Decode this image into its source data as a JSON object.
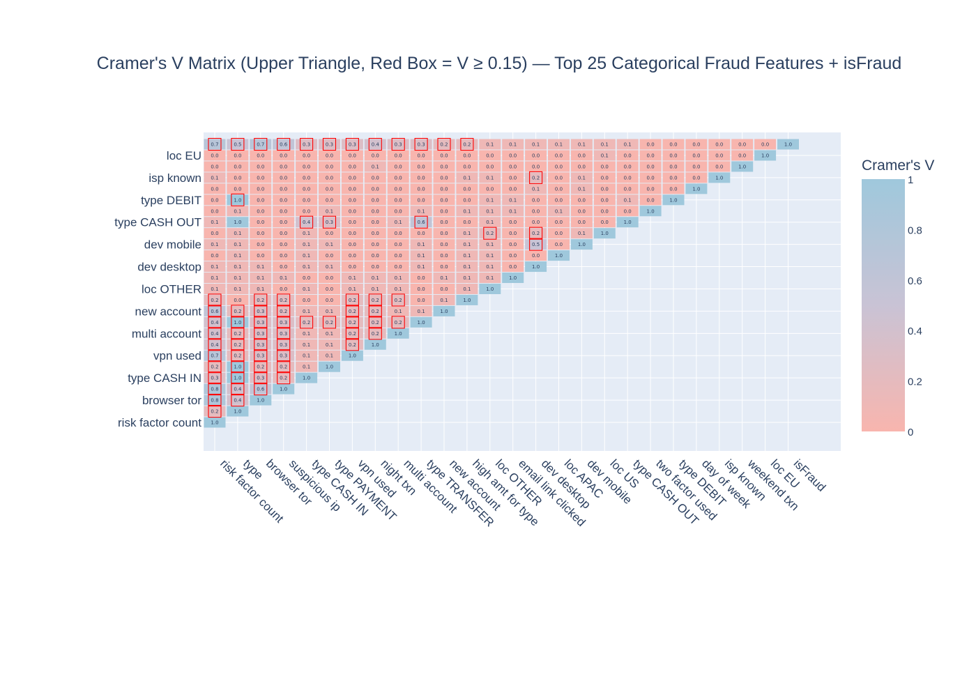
{
  "chart_data": {
    "type": "heatmap",
    "title": "Cramer's V Matrix (Upper Triangle, Red Box = V ≥ 0.15) — Top 25 Categorical Fraud Features + isFraud",
    "features": [
      "risk factor count",
      "type",
      "browser tor",
      "suspicious ip",
      "type CASH IN",
      "type PAYMENT",
      "vpn used",
      "night txn",
      "multi account",
      "type TRANSFER",
      "new account",
      "high amt for type",
      "loc OTHER",
      "email link clicked",
      "dev desktop",
      "loc APAC",
      "dev mobile",
      "loc US",
      "type CASH OUT",
      "two factor used",
      "type DEBIT",
      "day of week",
      "isp known",
      "weekend txn",
      "loc EU",
      "isFraud"
    ],
    "y_tick_labels": [
      "risk factor count",
      "browser tor",
      "type CASH IN",
      "vpn used",
      "multi account",
      "new account",
      "loc OTHER",
      "dev desktop",
      "dev mobile",
      "type CASH OUT",
      "type DEBIT",
      "isp known",
      "loc EU"
    ],
    "matrix": [
      [
        "1.0",
        "0.2",
        "0.8",
        "0.8",
        "0.3",
        "0.2",
        "0.7",
        "0.4",
        "0.4",
        "0.4",
        "0.6",
        "0.2",
        "0.1",
        "0.1",
        "0.1",
        "0.0",
        "0.1",
        "0.0",
        "0.1",
        "0.0",
        "0.0",
        "0.0",
        "0.1",
        "0.0",
        "0.0",
        "0.7"
      ],
      [
        null,
        "1.0",
        "0.4",
        "0.4",
        "1.0",
        "1.0",
        "0.2",
        "0.2",
        "0.2",
        "1.0",
        "0.2",
        "0.0",
        "0.1",
        "0.1",
        "0.1",
        "0.1",
        "0.1",
        "0.1",
        "1.0",
        "0.1",
        "1.0",
        "0.0",
        "0.0",
        "0.0",
        "0.0",
        "0.5"
      ],
      [
        null,
        null,
        "1.0",
        "0.6",
        "0.3",
        "0.2",
        "0.3",
        "0.3",
        "0.3",
        "0.3",
        "0.3",
        "0.2",
        "0.1",
        "0.1",
        "0.1",
        "0.0",
        "0.0",
        "0.0",
        "0.0",
        "0.0",
        "0.0",
        "0.0",
        "0.0",
        "0.0",
        "0.0",
        "0.7"
      ],
      [
        null,
        null,
        null,
        "1.0",
        "0.2",
        "0.2",
        "0.3",
        "0.3",
        "0.3",
        "0.3",
        "0.2",
        "0.2",
        "0.0",
        "0.1",
        "0.0",
        "0.0",
        "0.0",
        "0.0",
        "0.0",
        "0.0",
        "0.0",
        "0.0",
        "0.0",
        "0.0",
        "0.0",
        "0.6"
      ],
      [
        null,
        null,
        null,
        null,
        "1.0",
        "0.1",
        "0.1",
        "0.1",
        "0.1",
        "0.2",
        "0.1",
        "0.0",
        "0.1",
        "0.0",
        "0.1",
        "0.1",
        "0.1",
        "0.1",
        "0.4",
        "0.0",
        "0.0",
        "0.0",
        "0.0",
        "0.0",
        "0.0",
        "0.3"
      ],
      [
        null,
        null,
        null,
        null,
        null,
        "1.0",
        "0.1",
        "0.1",
        "0.1",
        "0.2",
        "0.1",
        "0.0",
        "0.0",
        "0.0",
        "0.1",
        "0.0",
        "0.1",
        "0.0",
        "0.3",
        "0.1",
        "0.0",
        "0.0",
        "0.0",
        "0.0",
        "0.0",
        "0.3"
      ],
      [
        null,
        null,
        null,
        null,
        null,
        null,
        "1.0",
        "0.2",
        "0.2",
        "0.2",
        "0.2",
        "0.2",
        "0.1",
        "0.1",
        "0.0",
        "0.0",
        "0.0",
        "0.0",
        "0.0",
        "0.0",
        "0.0",
        "0.0",
        "0.0",
        "0.0",
        "0.0",
        "0.3"
      ],
      [
        null,
        null,
        null,
        null,
        null,
        null,
        null,
        "1.0",
        "0.2",
        "0.2",
        "0.2",
        "0.2",
        "0.1",
        "0.1",
        "0.0",
        "0.0",
        "0.0",
        "0.0",
        "0.0",
        "0.0",
        "0.0",
        "0.0",
        "0.0",
        "0.1",
        "0.0",
        "0.4"
      ],
      [
        null,
        null,
        null,
        null,
        null,
        null,
        null,
        null,
        "1.0",
        "0.2",
        "0.1",
        "0.2",
        "0.1",
        "0.1",
        "0.0",
        "0.0",
        "0.0",
        "0.0",
        "0.1",
        "0.0",
        "0.0",
        "0.0",
        "0.0",
        "0.0",
        "0.0",
        "0.3"
      ],
      [
        null,
        null,
        null,
        null,
        null,
        null,
        null,
        null,
        null,
        "1.0",
        "0.1",
        "0.0",
        "0.0",
        "0.0",
        "0.1",
        "0.1",
        "0.1",
        "0.0",
        "0.6",
        "0.1",
        "0.0",
        "0.0",
        "0.0",
        "0.0",
        "0.0",
        "0.3"
      ],
      [
        null,
        null,
        null,
        null,
        null,
        null,
        null,
        null,
        null,
        null,
        "1.0",
        "0.1",
        "0.0",
        "0.1",
        "0.0",
        "0.0",
        "0.0",
        "0.0",
        "0.0",
        "0.0",
        "0.0",
        "0.0",
        "0.0",
        "0.0",
        "0.0",
        "0.2"
      ],
      [
        null,
        null,
        null,
        null,
        null,
        null,
        null,
        null,
        null,
        null,
        null,
        "1.0",
        "0.1",
        "0.1",
        "0.1",
        "0.1",
        "0.1",
        "0.1",
        "0.0",
        "0.1",
        "0.0",
        "0.0",
        "0.1",
        "0.0",
        "0.0",
        "0.2"
      ],
      [
        null,
        null,
        null,
        null,
        null,
        null,
        null,
        null,
        null,
        null,
        null,
        null,
        "1.0",
        "0.1",
        "0.1",
        "0.1",
        "0.1",
        "0.2",
        "0.1",
        "0.1",
        "0.1",
        "0.0",
        "0.1",
        "0.0",
        "0.0",
        "0.1"
      ],
      [
        null,
        null,
        null,
        null,
        null,
        null,
        null,
        null,
        null,
        null,
        null,
        null,
        null,
        "1.0",
        "0.0",
        "0.0",
        "0.0",
        "0.0",
        "0.0",
        "0.1",
        "0.1",
        "0.0",
        "0.0",
        "0.0",
        "0.0",
        "0.1"
      ],
      [
        null,
        null,
        null,
        null,
        null,
        null,
        null,
        null,
        null,
        null,
        null,
        null,
        null,
        null,
        "1.0",
        "0.0",
        "0.5",
        "0.2",
        "0.0",
        "0.0",
        "0.0",
        "0.1",
        "0.2",
        "0.0",
        "0.0",
        "0.1"
      ],
      [
        null,
        null,
        null,
        null,
        null,
        null,
        null,
        null,
        null,
        null,
        null,
        null,
        null,
        null,
        null,
        "1.0",
        "0.0",
        "0.0",
        "0.0",
        "0.1",
        "0.0",
        "0.0",
        "0.0",
        "0.0",
        "0.0",
        "0.1"
      ],
      [
        null,
        null,
        null,
        null,
        null,
        null,
        null,
        null,
        null,
        null,
        null,
        null,
        null,
        null,
        null,
        null,
        "1.0",
        "0.1",
        "0.0",
        "0.0",
        "0.0",
        "0.1",
        "0.1",
        "0.0",
        "0.0",
        "0.1"
      ],
      [
        null,
        null,
        null,
        null,
        null,
        null,
        null,
        null,
        null,
        null,
        null,
        null,
        null,
        null,
        null,
        null,
        null,
        "1.0",
        "0.0",
        "0.0",
        "0.0",
        "0.0",
        "0.0",
        "0.0",
        "0.1",
        "0.1"
      ],
      [
        null,
        null,
        null,
        null,
        null,
        null,
        null,
        null,
        null,
        null,
        null,
        null,
        null,
        null,
        null,
        null,
        null,
        null,
        "1.0",
        "0.0",
        "0.1",
        "0.0",
        "0.0",
        "0.0",
        "0.0",
        "0.1"
      ],
      [
        null,
        null,
        null,
        null,
        null,
        null,
        null,
        null,
        null,
        null,
        null,
        null,
        null,
        null,
        null,
        null,
        null,
        null,
        null,
        "1.0",
        "0.0",
        "0.0",
        "0.0",
        "0.0",
        "0.0",
        "0.0"
      ],
      [
        null,
        null,
        null,
        null,
        null,
        null,
        null,
        null,
        null,
        null,
        null,
        null,
        null,
        null,
        null,
        null,
        null,
        null,
        null,
        null,
        "1.0",
        "0.0",
        "0.0",
        "0.0",
        "0.0",
        "0.0"
      ],
      [
        null,
        null,
        null,
        null,
        null,
        null,
        null,
        null,
        null,
        null,
        null,
        null,
        null,
        null,
        null,
        null,
        null,
        null,
        null,
        null,
        null,
        "1.0",
        "0.0",
        "0.0",
        "0.0",
        "0.0"
      ],
      [
        null,
        null,
        null,
        null,
        null,
        null,
        null,
        null,
        null,
        null,
        null,
        null,
        null,
        null,
        null,
        null,
        null,
        null,
        null,
        null,
        null,
        null,
        "1.0",
        "0.0",
        "0.0",
        "0.0"
      ],
      [
        null,
        null,
        null,
        null,
        null,
        null,
        null,
        null,
        null,
        null,
        null,
        null,
        null,
        null,
        null,
        null,
        null,
        null,
        null,
        null,
        null,
        null,
        null,
        "1.0",
        "0.0",
        "0.0"
      ],
      [
        null,
        null,
        null,
        null,
        null,
        null,
        null,
        null,
        null,
        null,
        null,
        null,
        null,
        null,
        null,
        null,
        null,
        null,
        null,
        null,
        null,
        null,
        null,
        null,
        "1.0",
        "0.0"
      ],
      [
        null,
        null,
        null,
        null,
        null,
        null,
        null,
        null,
        null,
        null,
        null,
        null,
        null,
        null,
        null,
        null,
        null,
        null,
        null,
        null,
        null,
        null,
        null,
        null,
        null,
        "1.0"
      ]
    ],
    "red_boxes": [
      [
        0,
        1
      ],
      [
        0,
        2
      ],
      [
        0,
        3
      ],
      [
        0,
        4
      ],
      [
        0,
        5
      ],
      [
        0,
        6
      ],
      [
        0,
        7
      ],
      [
        0,
        8
      ],
      [
        0,
        9
      ],
      [
        0,
        10
      ],
      [
        0,
        11
      ],
      [
        0,
        25
      ],
      [
        1,
        2
      ],
      [
        1,
        3
      ],
      [
        1,
        4
      ],
      [
        1,
        5
      ],
      [
        1,
        6
      ],
      [
        1,
        7
      ],
      [
        1,
        8
      ],
      [
        1,
        9
      ],
      [
        1,
        10
      ],
      [
        1,
        20
      ],
      [
        1,
        25
      ],
      [
        2,
        3
      ],
      [
        2,
        4
      ],
      [
        2,
        5
      ],
      [
        2,
        6
      ],
      [
        2,
        7
      ],
      [
        2,
        8
      ],
      [
        2,
        9
      ],
      [
        2,
        10
      ],
      [
        2,
        11
      ],
      [
        2,
        25
      ],
      [
        3,
        4
      ],
      [
        3,
        5
      ],
      [
        3,
        6
      ],
      [
        3,
        7
      ],
      [
        3,
        8
      ],
      [
        3,
        9
      ],
      [
        3,
        10
      ],
      [
        3,
        11
      ],
      [
        3,
        25
      ],
      [
        4,
        9
      ],
      [
        4,
        18
      ],
      [
        4,
        25
      ],
      [
        5,
        9
      ],
      [
        5,
        18
      ],
      [
        5,
        25
      ],
      [
        6,
        7
      ],
      [
        6,
        8
      ],
      [
        6,
        9
      ],
      [
        6,
        10
      ],
      [
        6,
        11
      ],
      [
        6,
        25
      ],
      [
        7,
        8
      ],
      [
        7,
        9
      ],
      [
        7,
        10
      ],
      [
        7,
        11
      ],
      [
        7,
        25
      ],
      [
        8,
        9
      ],
      [
        8,
        11
      ],
      [
        8,
        25
      ],
      [
        9,
        18
      ],
      [
        9,
        25
      ],
      [
        10,
        25
      ],
      [
        11,
        25
      ],
      [
        12,
        17
      ],
      [
        14,
        16
      ],
      [
        14,
        17
      ],
      [
        14,
        22
      ]
    ],
    "colorscale": {
      "low": "#f8b5ae",
      "mid": "#c9c3d5",
      "high": "#9fc8dc"
    },
    "colorbar": {
      "title": "Cramer's V",
      "ticks": [
        "0",
        "0.2",
        "0.4",
        "0.6",
        "0.8",
        "1"
      ]
    },
    "zmin": 0,
    "zmax": 1,
    "red_box_threshold": 0.15,
    "plot_bg": "#e5ecf6",
    "box_color": "#ff0000"
  }
}
